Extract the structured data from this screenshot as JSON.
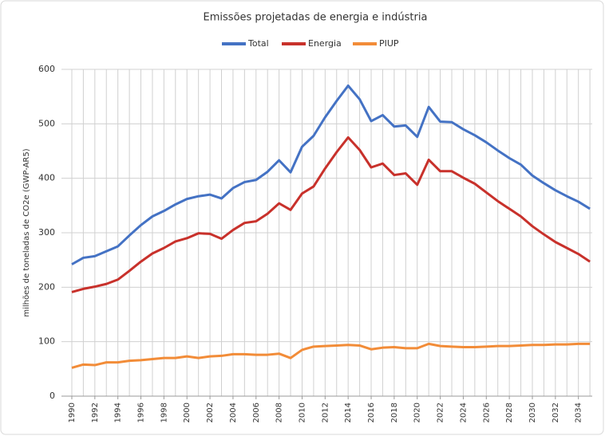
{
  "chart_data": {
    "type": "line",
    "title": "Emissões projetadas de energia e indústria",
    "y_label": "milhões de toneladas de CO2e (GWP-AR5)",
    "x": [
      1990,
      1991,
      1992,
      1993,
      1994,
      1995,
      1996,
      1997,
      1998,
      1999,
      2000,
      2001,
      2002,
      2003,
      2004,
      2005,
      2006,
      2007,
      2008,
      2009,
      2010,
      2011,
      2012,
      2013,
      2014,
      2015,
      2016,
      2017,
      2018,
      2019,
      2020,
      2021,
      2022,
      2023,
      2024,
      2025,
      2026,
      2027,
      2028,
      2029,
      2030,
      2031,
      2032,
      2033,
      2034,
      2035
    ],
    "series": [
      {
        "name": "Total",
        "color": "#4472c4",
        "values": [
          242,
          254,
          257,
          266,
          275,
          295,
          314,
          330,
          340,
          352,
          362,
          367,
          370,
          363,
          382,
          393,
          397,
          412,
          433,
          411,
          458,
          478,
          512,
          542,
          570,
          545,
          505,
          516,
          495,
          497,
          476,
          531,
          504,
          503,
          490,
          479,
          466,
          451,
          437,
          425,
          405,
          391,
          378,
          367,
          357,
          344
        ]
      },
      {
        "name": "Energia",
        "color": "#c8312b",
        "values": [
          191,
          197,
          201,
          206,
          214,
          230,
          247,
          262,
          272,
          284,
          290,
          299,
          298,
          289,
          305,
          318,
          321,
          335,
          354,
          342,
          372,
          385,
          418,
          448,
          475,
          452,
          420,
          427,
          406,
          409,
          388,
          434,
          413,
          413,
          401,
          390,
          374,
          358,
          344,
          330,
          312,
          297,
          283,
          272,
          261,
          247
        ]
      },
      {
        "name": "PIUP",
        "color": "#f28c38",
        "values": [
          52,
          58,
          57,
          62,
          62,
          65,
          66,
          68,
          70,
          70,
          73,
          70,
          73,
          74,
          77,
          77,
          76,
          76,
          78,
          70,
          85,
          91,
          92,
          93,
          94,
          93,
          86,
          89,
          90,
          88,
          88,
          96,
          92,
          91,
          90,
          90,
          91,
          92,
          92,
          93,
          94,
          94,
          95,
          95,
          96,
          96
        ]
      }
    ],
    "xlim": [
      1989.1,
      2035.2
    ],
    "xticks": [
      1990,
      1992,
      1994,
      1996,
      1998,
      2000,
      2002,
      2004,
      2006,
      2008,
      2010,
      2012,
      2014,
      2016,
      2018,
      2020,
      2022,
      2024,
      2026,
      2028,
      2030,
      2032,
      2034
    ],
    "ylim": [
      0,
      600
    ],
    "yticks": [
      0,
      100,
      200,
      300,
      400,
      500,
      600
    ],
    "grid": true,
    "legend": "top"
  }
}
